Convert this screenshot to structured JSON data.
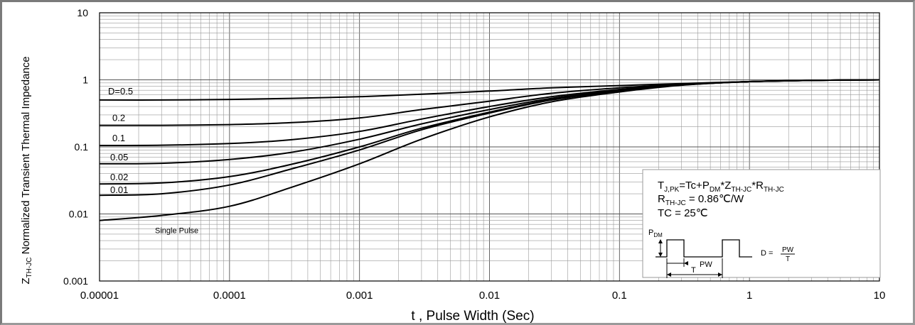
{
  "chart_data": {
    "type": "line",
    "title": "",
    "xlabel": "t , Pulse Width (Sec)",
    "ylabel": "Normalized Transient Thermal Impedance",
    "ylabel_symbol": "Z",
    "ylabel_subscript": "TH-JC",
    "x_scale": "log",
    "y_scale": "log",
    "xlim": [
      1e-05,
      10
    ],
    "ylim": [
      0.001,
      10
    ],
    "grid": true,
    "x_ticks": [
      {
        "value": 1e-05,
        "label": "0.00001"
      },
      {
        "value": 0.0001,
        "label": "0.0001"
      },
      {
        "value": 0.001,
        "label": "0.001"
      },
      {
        "value": 0.01,
        "label": "0.01"
      },
      {
        "value": 0.1,
        "label": "0.1"
      },
      {
        "value": 1,
        "label": "1"
      },
      {
        "value": 10,
        "label": "10"
      }
    ],
    "y_ticks": [
      {
        "value": 0.001,
        "label": "0.001"
      },
      {
        "value": 0.01,
        "label": "0.01"
      },
      {
        "value": 0.1,
        "label": "0.1"
      },
      {
        "value": 1,
        "label": "1"
      },
      {
        "value": 10,
        "label": "10"
      }
    ],
    "x": [
      1e-05,
      3e-05,
      0.0001,
      0.0003,
      0.001,
      0.003,
      0.01,
      0.03,
      0.1,
      0.3,
      1,
      3,
      10
    ],
    "series": [
      {
        "name": "D=0.5",
        "values": [
          0.5,
          0.5,
          0.51,
          0.53,
          0.56,
          0.61,
          0.68,
          0.76,
          0.82,
          0.88,
          0.94,
          0.98,
          1.0
        ]
      },
      {
        "name": "0.2",
        "values": [
          0.21,
          0.21,
          0.215,
          0.23,
          0.27,
          0.36,
          0.48,
          0.63,
          0.76,
          0.86,
          0.94,
          0.98,
          1.0
        ]
      },
      {
        "name": "0.1",
        "values": [
          0.105,
          0.106,
          0.112,
          0.128,
          0.17,
          0.26,
          0.4,
          0.56,
          0.72,
          0.85,
          0.94,
          0.98,
          1.0
        ]
      },
      {
        "name": "0.05",
        "values": [
          0.056,
          0.057,
          0.065,
          0.083,
          0.13,
          0.22,
          0.36,
          0.53,
          0.7,
          0.84,
          0.94,
          0.98,
          1.0
        ]
      },
      {
        "name": "0.02",
        "values": [
          0.028,
          0.029,
          0.036,
          0.055,
          0.1,
          0.19,
          0.33,
          0.51,
          0.69,
          0.84,
          0.94,
          0.98,
          1.0
        ]
      },
      {
        "name": "0.01",
        "values": [
          0.019,
          0.02,
          0.027,
          0.047,
          0.09,
          0.18,
          0.32,
          0.5,
          0.68,
          0.84,
          0.94,
          0.98,
          1.0
        ]
      },
      {
        "name": "Single Pulse",
        "values": [
          0.008,
          0.0095,
          0.013,
          0.025,
          0.056,
          0.13,
          0.28,
          0.47,
          0.66,
          0.83,
          0.94,
          0.98,
          1.0
        ]
      }
    ],
    "series_label_text": {
      "D=0.5": "D=0.5",
      "0.2": "0.2",
      "0.1": "0.1",
      "0.05": "0.05",
      "0.02": "0.02",
      "0.01": "0.01",
      "Single Pulse": "Single Pulse"
    },
    "annotation": {
      "line1": {
        "a": "T",
        "a_sub": "J,PK",
        "b": "=Tc+P",
        "b_sub": "DM",
        "c": "*Z",
        "c_sub": "TH-JC",
        "d": "*R",
        "d_sub": "TH-JC"
      },
      "line2": {
        "a": "R",
        "a_sub": "TH-JC",
        "b": " = 0.86℃/W"
      },
      "line3": "TC = 25℃",
      "waveform": {
        "pdm": "P",
        "pdm_sub": "DM",
        "pw": "PW",
        "t": "T",
        "d_label": "D =",
        "d_num": "PW",
        "d_den": "T"
      }
    }
  }
}
